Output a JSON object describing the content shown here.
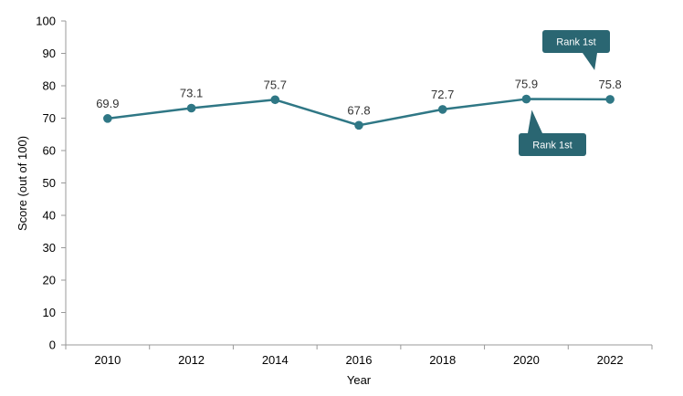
{
  "chart_data": {
    "type": "line",
    "x": [
      "2010",
      "2012",
      "2014",
      "2016",
      "2018",
      "2020",
      "2022"
    ],
    "series": [
      {
        "values": [
          69.9,
          73.1,
          75.7,
          67.8,
          72.7,
          75.9,
          75.8
        ]
      }
    ],
    "data_labels": [
      "69.9",
      "73.1",
      "75.7",
      "67.8",
      "72.7",
      "75.9",
      "75.8"
    ],
    "xlabel": "Year",
    "ylabel": "Score (out of 100)",
    "ylim": [
      0,
      100
    ],
    "yticks": [
      "0",
      "10",
      "20",
      "30",
      "40",
      "50",
      "60",
      "70",
      "80",
      "90",
      "100"
    ],
    "grid": false,
    "legend": "none",
    "annotations": [
      {
        "text": "Rank 1st",
        "target": "2020",
        "position": "below-right"
      },
      {
        "text": "Rank 1st",
        "target": "2022",
        "position": "above-left"
      }
    ],
    "colors": {
      "line": "#2f7785",
      "callout": "#2a6672",
      "axis": "#999999"
    }
  }
}
